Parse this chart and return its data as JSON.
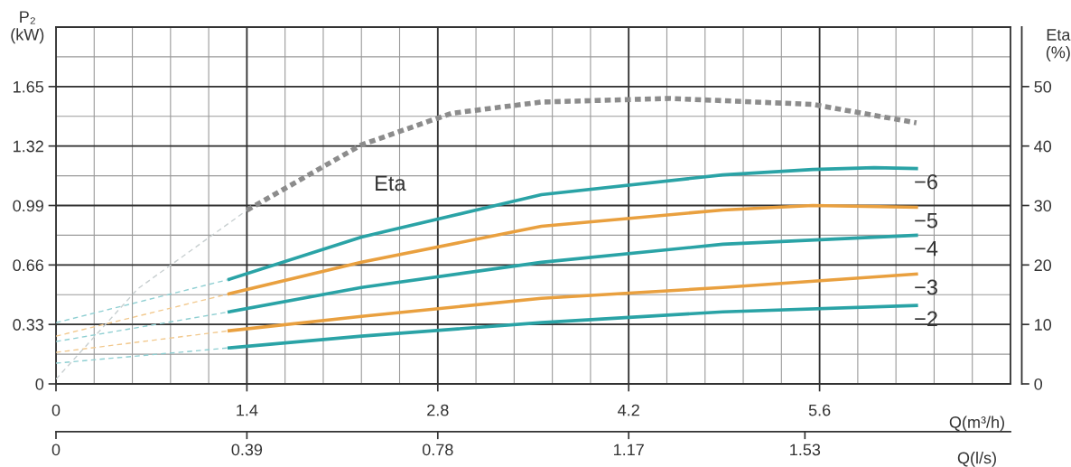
{
  "chart_data": {
    "type": "line",
    "xlabel": "Q(m³/h)",
    "ylabel": "P₂\n(kW)",
    "y2label": "Eta\n(%)",
    "x2label": "Q(l/s)",
    "xlim": [
      0,
      7.0
    ],
    "xticks": [
      0,
      1.4,
      2.8,
      4.2,
      5.6
    ],
    "ylim": [
      0,
      1.98
    ],
    "yticks": [
      0,
      0.33,
      0.66,
      0.99,
      1.32,
      1.65
    ],
    "y2lim": [
      0,
      60
    ],
    "y2ticks": [
      0,
      10,
      20,
      30,
      40,
      50
    ],
    "x2lim": [
      0,
      1.95
    ],
    "x2ticks": [
      0,
      0.39,
      0.78,
      1.17,
      1.53
    ],
    "grid": true,
    "series": [
      {
        "color": "#c8cfd0",
        "line_style": "dashed",
        "axis": "y2",
        "x": [
          0,
          0.6,
          1.4
        ],
        "values": [
          0.8,
          16,
          29.2
        ]
      },
      {
        "name": "Eta",
        "color": "#8c8c8c",
        "line_style": "dotted",
        "axis": "y2",
        "x": [
          1.4,
          2.24,
          2.9,
          3.56,
          4.5,
          5.55,
          6.31
        ],
        "values": [
          29.2,
          40.2,
          45.5,
          47.4,
          48.0,
          47.0,
          43.9
        ]
      },
      {
        "color": "#8fcfd2",
        "line_style": "dashed",
        "x": [
          0,
          1.27
        ],
        "values": [
          0.34,
          0.58
        ]
      },
      {
        "color": "#f2c98e",
        "line_style": "dashed",
        "x": [
          0,
          1.27
        ],
        "values": [
          0.265,
          0.5
        ]
      },
      {
        "color": "#8fcfd2",
        "line_style": "dashed",
        "x": [
          0,
          1.27
        ],
        "values": [
          0.235,
          0.4
        ]
      },
      {
        "color": "#f2c98e",
        "line_style": "dashed",
        "x": [
          0,
          1.27
        ],
        "values": [
          0.175,
          0.295
        ]
      },
      {
        "color": "#8fcfd2",
        "line_style": "dashed",
        "x": [
          0,
          1.27
        ],
        "values": [
          0.115,
          0.2
        ]
      },
      {
        "name": "−6",
        "color": "#2aa3a6",
        "line_style": "solid",
        "x": [
          1.27,
          2.24,
          3.56,
          4.89,
          5.55,
          6.0,
          6.31
        ],
        "values": [
          0.58,
          0.815,
          1.05,
          1.16,
          1.19,
          1.2,
          1.195
        ]
      },
      {
        "name": "−5",
        "color": "#e9a03f",
        "line_style": "solid",
        "x": [
          1.27,
          2.24,
          3.56,
          4.89,
          5.55,
          6.31
        ],
        "values": [
          0.5,
          0.675,
          0.875,
          0.965,
          0.99,
          0.98
        ]
      },
      {
        "name": "−4",
        "color": "#2aa3a6",
        "line_style": "solid",
        "x": [
          1.27,
          2.24,
          3.56,
          4.89,
          6.31
        ],
        "values": [
          0.4,
          0.535,
          0.675,
          0.775,
          0.825
        ]
      },
      {
        "name": "−3",
        "color": "#e9a03f",
        "line_style": "solid",
        "x": [
          1.27,
          2.24,
          3.56,
          4.89,
          6.31
        ],
        "values": [
          0.295,
          0.375,
          0.475,
          0.535,
          0.61
        ]
      },
      {
        "name": "−2",
        "color": "#2aa3a6",
        "line_style": "solid",
        "x": [
          1.27,
          2.24,
          3.56,
          4.89,
          6.31
        ],
        "values": [
          0.2,
          0.265,
          0.34,
          0.4,
          0.435
        ]
      }
    ]
  }
}
